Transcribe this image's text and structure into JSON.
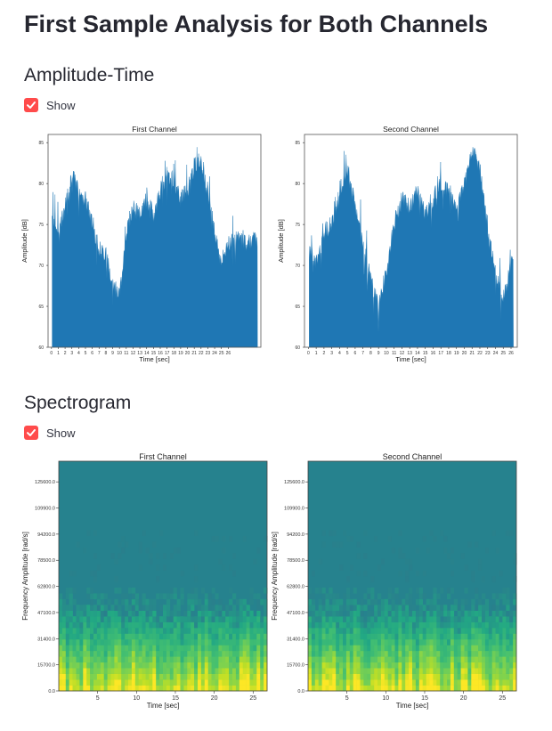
{
  "page": {
    "title": "First Sample Analysis for Both Channels"
  },
  "sections": {
    "amplitude": {
      "heading": "Amplitude-Time",
      "checkbox_label": "Show",
      "checked": true
    },
    "spectrogram": {
      "heading": "Spectrogram",
      "checkbox_label": "Show",
      "checked": true
    }
  },
  "colors": {
    "accent": "#ff4b4b",
    "series": "#1f77b4",
    "spec_bg": "#26828e",
    "spec_low": "#bddf26"
  },
  "icons": {
    "checkbox": "checkmark-icon"
  },
  "chart_data": [
    {
      "type": "area",
      "title": "First Channel",
      "xlabel": "Time [sec]",
      "ylabel": "Amplitude [dB]",
      "xlim": [
        -0.5,
        30.8
      ],
      "ylim": [
        60,
        86
      ],
      "xticks": [
        0,
        1,
        2,
        3,
        4,
        5,
        6,
        7,
        8,
        9,
        10,
        11,
        12,
        13,
        14,
        15,
        16,
        17,
        18,
        19,
        20,
        21,
        22,
        23,
        24,
        25,
        26
      ],
      "yticks": [
        60,
        65,
        70,
        75,
        80,
        85
      ],
      "x": [
        0,
        1,
        2,
        3,
        4,
        5,
        6,
        7,
        8,
        9,
        10,
        11,
        12,
        13,
        14,
        15,
        16,
        17,
        18,
        19,
        20,
        21,
        22,
        23,
        24,
        25,
        26
      ],
      "values": [
        76,
        74,
        77,
        81,
        79,
        78,
        75,
        72,
        71,
        68,
        66,
        74,
        77,
        76,
        78,
        76,
        79,
        81,
        80,
        78,
        79,
        82,
        83,
        79,
        74,
        70,
        73
      ],
      "baseline": 60
    },
    {
      "type": "area",
      "title": "Second Channel",
      "xlabel": "Time [sec]",
      "ylabel": "Amplitude [dB]",
      "xlim": [
        -0.5,
        26.8
      ],
      "ylim": [
        60,
        86
      ],
      "xticks": [
        0,
        1,
        2,
        3,
        4,
        5,
        6,
        7,
        8,
        9,
        10,
        11,
        12,
        13,
        14,
        15,
        16,
        17,
        18,
        19,
        20,
        21,
        22,
        23,
        24,
        25,
        26
      ],
      "yticks": [
        60,
        65,
        70,
        75,
        80,
        85
      ],
      "x": [
        0,
        1,
        2,
        3,
        4,
        5,
        6,
        7,
        8,
        9,
        10,
        11,
        12,
        13,
        14,
        15,
        16,
        17,
        18,
        19,
        20,
        21,
        22,
        23,
        24,
        25,
        26
      ],
      "values": [
        72,
        70,
        74,
        75,
        79,
        82,
        77,
        73,
        68,
        65,
        69,
        75,
        78,
        77,
        79,
        76,
        78,
        80,
        79,
        77,
        80,
        84,
        82,
        74,
        69,
        66,
        70
      ],
      "baseline": 60
    },
    {
      "type": "heatmap",
      "title": "First Channel",
      "xlabel": "Time [sec]",
      "ylabel": "Frequency Amplitude [rad/s]",
      "xlim": [
        0,
        26.8
      ],
      "ylim": [
        0,
        138000
      ],
      "xticks": [
        5,
        10,
        15,
        20,
        25
      ],
      "yticks": [
        "0.0",
        "15700.0",
        "31400.0",
        "47100.0",
        "62800.0",
        "78500.0",
        "94200.0",
        "109900.0",
        "125600.0"
      ]
    },
    {
      "type": "heatmap",
      "title": "Second Channel",
      "xlabel": "Time [sec]",
      "ylabel": "Frequency Amplitude [rad/s]",
      "xlim": [
        0,
        26.8
      ],
      "ylim": [
        0,
        138000
      ],
      "xticks": [
        5,
        10,
        15,
        20,
        25
      ],
      "yticks": [
        "0.0",
        "15700.0",
        "31400.0",
        "47100.0",
        "62800.0",
        "78500.0",
        "94200.0",
        "109900.0",
        "125600.0"
      ]
    }
  ]
}
